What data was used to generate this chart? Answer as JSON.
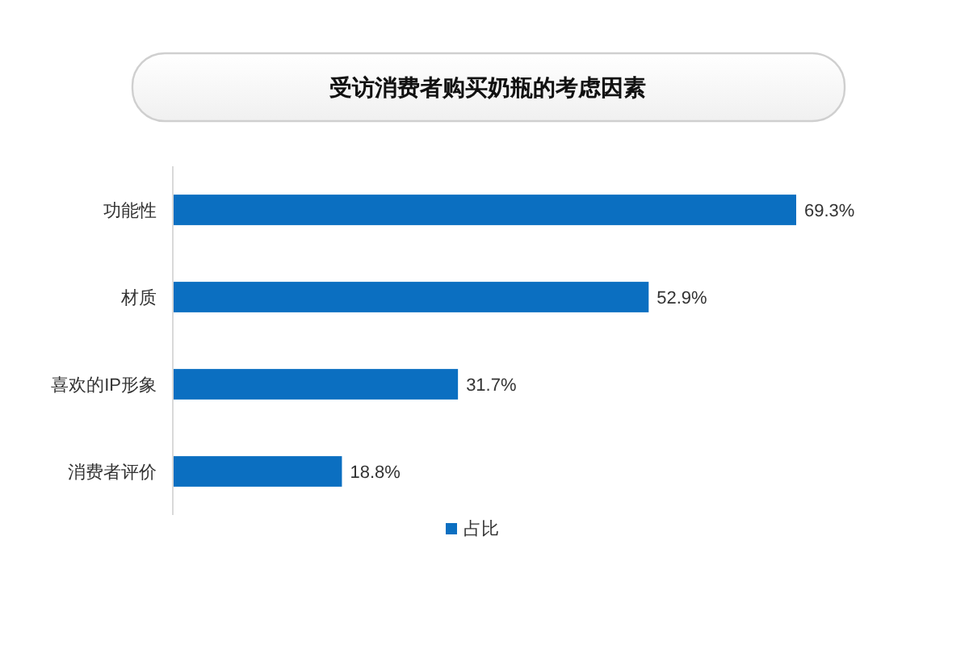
{
  "chart_data": {
    "type": "bar",
    "orientation": "horizontal",
    "title": "受访消费者购买奶瓶的考虑因素",
    "categories": [
      "功能性",
      "材质",
      "喜欢的IP形象",
      "消费者评价"
    ],
    "series": [
      {
        "name": "占比",
        "color": "#0b6fc1",
        "values": [
          69.3,
          52.9,
          31.7,
          18.8
        ],
        "value_labels": [
          "69.3%",
          "52.9%",
          "31.7%",
          "18.8%"
        ]
      }
    ],
    "legend": "bottom"
  }
}
